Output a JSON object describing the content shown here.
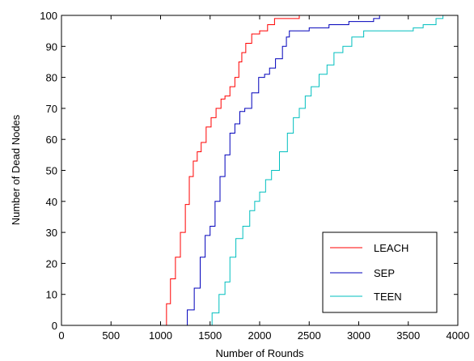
{
  "chart_data": {
    "type": "line",
    "title": "",
    "xlabel": "Number of Rounds",
    "ylabel": "Number of Dead Nodes",
    "xlim": [
      0,
      4000
    ],
    "ylim": [
      0,
      100
    ],
    "xticks": [
      0,
      500,
      1000,
      1500,
      2000,
      2500,
      3000,
      3500,
      4000
    ],
    "yticks": [
      0,
      10,
      20,
      30,
      40,
      50,
      60,
      70,
      80,
      90,
      100
    ],
    "grid": false,
    "legend_position": "bottom-right",
    "series": [
      {
        "name": "LEACH",
        "color": "#ff0000",
        "x": [
          0,
          1030,
          1060,
          1100,
          1150,
          1200,
          1250,
          1290,
          1330,
          1370,
          1410,
          1460,
          1510,
          1560,
          1610,
          1650,
          1700,
          1750,
          1790,
          1820,
          1860,
          1920,
          2000,
          2080,
          2150,
          2250,
          2400,
          2660
        ],
        "y": [
          0,
          0,
          7,
          15,
          22,
          30,
          39,
          48,
          53,
          56,
          59,
          64,
          67,
          70,
          73,
          74,
          77,
          80,
          85,
          88,
          91,
          94,
          95,
          97,
          99,
          99,
          100,
          100
        ]
      },
      {
        "name": "SEP",
        "color": "#0000bb",
        "x": [
          0,
          1220,
          1270,
          1340,
          1400,
          1450,
          1500,
          1550,
          1600,
          1650,
          1700,
          1750,
          1800,
          1850,
          1920,
          1990,
          2050,
          2100,
          2160,
          2230,
          2270,
          2300,
          2500,
          2700,
          2900,
          3150,
          3210
        ],
        "y": [
          0,
          0,
          5,
          12,
          22,
          29,
          32,
          40,
          48,
          55,
          62,
          65,
          69,
          70,
          75,
          80,
          81,
          83,
          86,
          90,
          93,
          95,
          96,
          97,
          98,
          99,
          100
        ]
      },
      {
        "name": "TEEN",
        "color": "#00bfbf",
        "x": [
          0,
          1450,
          1520,
          1590,
          1650,
          1700,
          1760,
          1830,
          1900,
          1950,
          2000,
          2060,
          2120,
          2200,
          2280,
          2340,
          2400,
          2460,
          2520,
          2600,
          2680,
          2750,
          2840,
          2930,
          3050,
          3450,
          3550,
          3650,
          3780,
          3850
        ],
        "y": [
          0,
          0,
          4,
          10,
          14,
          22,
          28,
          32,
          37,
          40,
          43,
          47,
          50,
          56,
          62,
          67,
          70,
          74,
          77,
          81,
          84,
          88,
          90,
          93,
          95,
          95,
          96,
          97,
          99,
          100
        ]
      }
    ]
  }
}
